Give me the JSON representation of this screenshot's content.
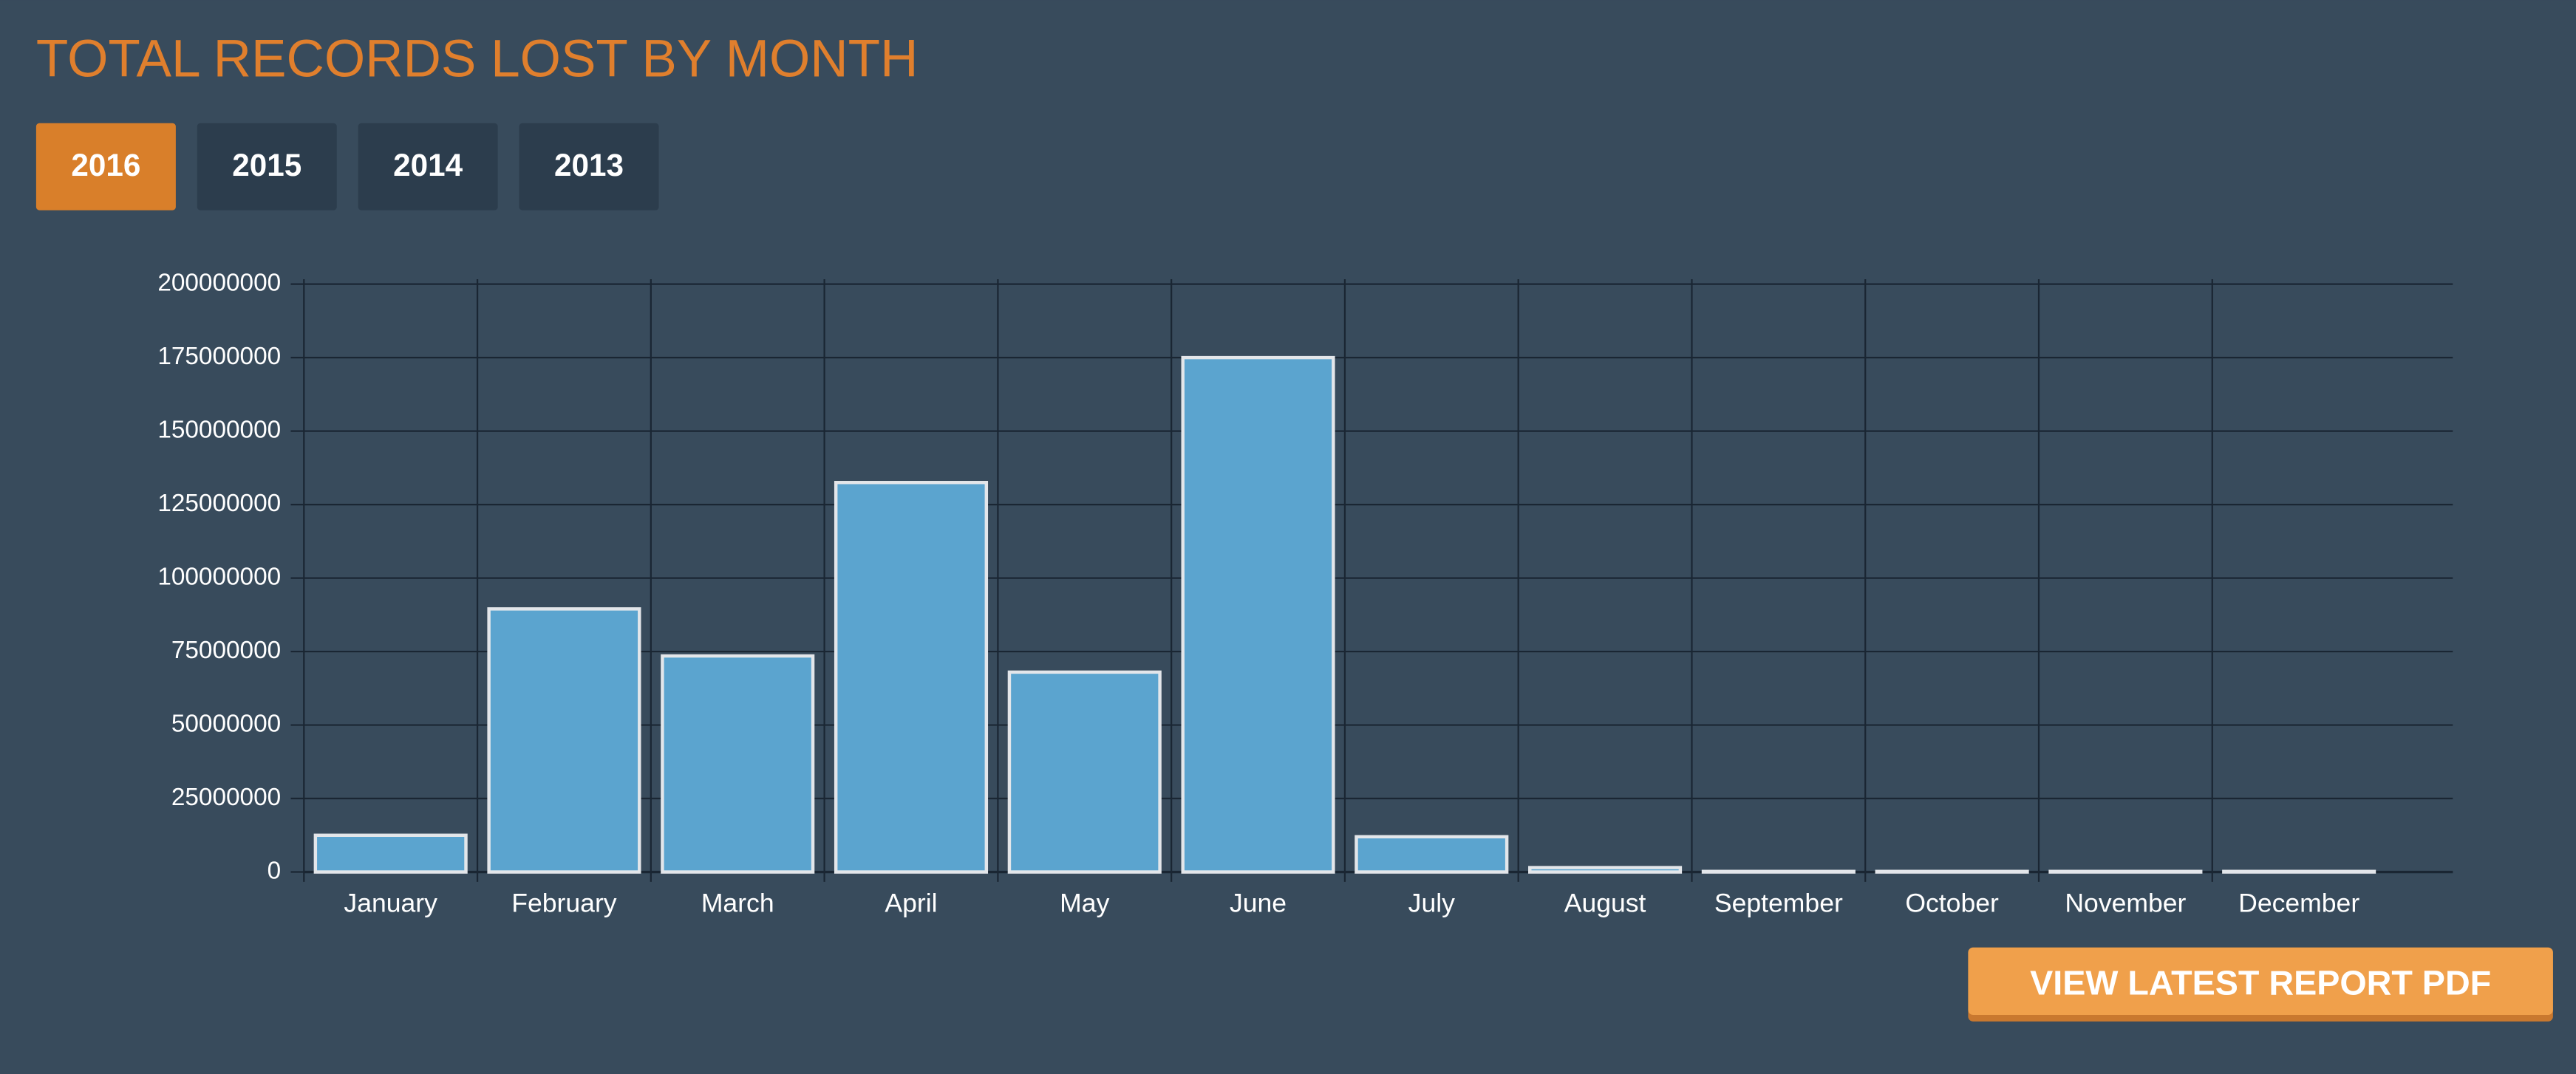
{
  "chart_data": {
    "type": "bar",
    "title": "TOTAL RECORDS LOST BY MONTH",
    "categories": [
      "January",
      "February",
      "March",
      "April",
      "May",
      "June",
      "July",
      "August",
      "September",
      "October",
      "November",
      "December"
    ],
    "values": [
      12500000,
      89500000,
      73500000,
      132500000,
      68000000,
      175000000,
      12000000,
      1500000,
      200000,
      200000,
      200000,
      200000
    ],
    "color": "#5ba4cf",
    "ylim": [
      0,
      200000000
    ],
    "yticks": [
      0,
      25000000,
      50000000,
      75000000,
      100000000,
      125000000,
      150000000,
      175000000,
      200000000
    ],
    "grid": true
  },
  "year_tabs": [
    "2016",
    "2015",
    "2014",
    "2013"
  ],
  "report_button": "VIEW LATEST REPORT PDF"
}
